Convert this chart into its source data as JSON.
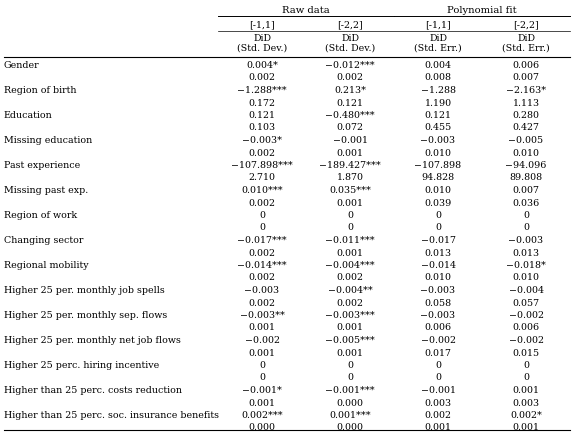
{
  "header_group1": "Raw data",
  "header_group2": "Polynomial fit",
  "col_ranges": [
    "[-1,1]",
    "[-2,2]",
    "[-1,1]",
    "[-2,2]"
  ],
  "col_subheader_row1": [
    "DiD",
    "DiD",
    "DiD",
    "DiD"
  ],
  "col_subheader_row2": [
    "(Std. Dev.)",
    "(Std. Dev.)",
    "(Std. Err.)",
    "(Std. Err.)"
  ],
  "row_labels": [
    "Gender",
    "Region of birth",
    "Education",
    "Missing education",
    "Past experience",
    "Missing past exp.",
    "Region of work",
    "Changing sector",
    "Regional mobility",
    "Higher 25 per. monthly job spells",
    "Higher 25 per. monthly sep. flows",
    "Higher 25 per. monthly net job flows",
    "Higher 25 perc. hiring incentive",
    "Higher than 25 perc. costs reduction",
    "Higher than 25 perc. soc. insurance benefits"
  ],
  "col1_values": [
    [
      "0.004*",
      "0.002"
    ],
    [
      "−1.288***",
      "0.172"
    ],
    [
      "0.121",
      "0.103"
    ],
    [
      "−0.003*",
      "0.002"
    ],
    [
      "−107.898***",
      "2.710"
    ],
    [
      "0.010***",
      "0.002"
    ],
    [
      "0",
      "0"
    ],
    [
      "−0.017***",
      "0.002"
    ],
    [
      "−0.014***",
      "0.002"
    ],
    [
      "−0.003",
      "0.002"
    ],
    [
      "−0.003**",
      "0.001"
    ],
    [
      "−0.002",
      "0.001"
    ],
    [
      "0",
      "0"
    ],
    [
      "−0.001*",
      "0.001"
    ],
    [
      "0.002***",
      "0.000"
    ]
  ],
  "col2_values": [
    [
      "−0.012***",
      "0.002"
    ],
    [
      "0.213*",
      "0.121"
    ],
    [
      "−0.480***",
      "0.072"
    ],
    [
      "−0.001",
      "0.001"
    ],
    [
      "−189.427***",
      "1.870"
    ],
    [
      "0.035***",
      "0.001"
    ],
    [
      "0",
      "0"
    ],
    [
      "−0.011***",
      "0.001"
    ],
    [
      "−0.004***",
      "0.002"
    ],
    [
      "−0.004**",
      "0.002"
    ],
    [
      "−0.003***",
      "0.001"
    ],
    [
      "−0.005***",
      "0.001"
    ],
    [
      "0",
      "0"
    ],
    [
      "−0.001***",
      "0.000"
    ],
    [
      "0.001***",
      "0.000"
    ]
  ],
  "col3_values": [
    [
      "0.004",
      "0.008"
    ],
    [
      "−1.288",
      "1.190"
    ],
    [
      "0.121",
      "0.455"
    ],
    [
      "−0.003",
      "0.010"
    ],
    [
      "−107.898",
      "94.828"
    ],
    [
      "0.010",
      "0.039"
    ],
    [
      "0",
      "0"
    ],
    [
      "−0.017",
      "0.013"
    ],
    [
      "−0.014",
      "0.010"
    ],
    [
      "−0.003",
      "0.058"
    ],
    [
      "−0.003",
      "0.006"
    ],
    [
      "−0.002",
      "0.017"
    ],
    [
      "0",
      "0"
    ],
    [
      "−0.001",
      "0.003"
    ],
    [
      "0.002",
      "0.001"
    ]
  ],
  "col4_values": [
    [
      "0.006",
      "0.007"
    ],
    [
      "−2.163*",
      "1.113"
    ],
    [
      "0.280",
      "0.427"
    ],
    [
      "−0.005",
      "0.010"
    ],
    [
      "−94.096",
      "89.808"
    ],
    [
      "0.007",
      "0.036"
    ],
    [
      "0",
      "0"
    ],
    [
      "−0.003",
      "0.013"
    ],
    [
      "−0.018*",
      "0.010"
    ],
    [
      "−0.004",
      "0.057"
    ],
    [
      "−0.002",
      "0.006"
    ],
    [
      "−0.002",
      "0.015"
    ],
    [
      "0",
      "0"
    ],
    [
      "0.001",
      "0.003"
    ],
    [
      "0.002*",
      "0.001"
    ]
  ],
  "bg_color": "white",
  "text_color": "black",
  "font_size": 6.8,
  "header_font_size": 7.2
}
